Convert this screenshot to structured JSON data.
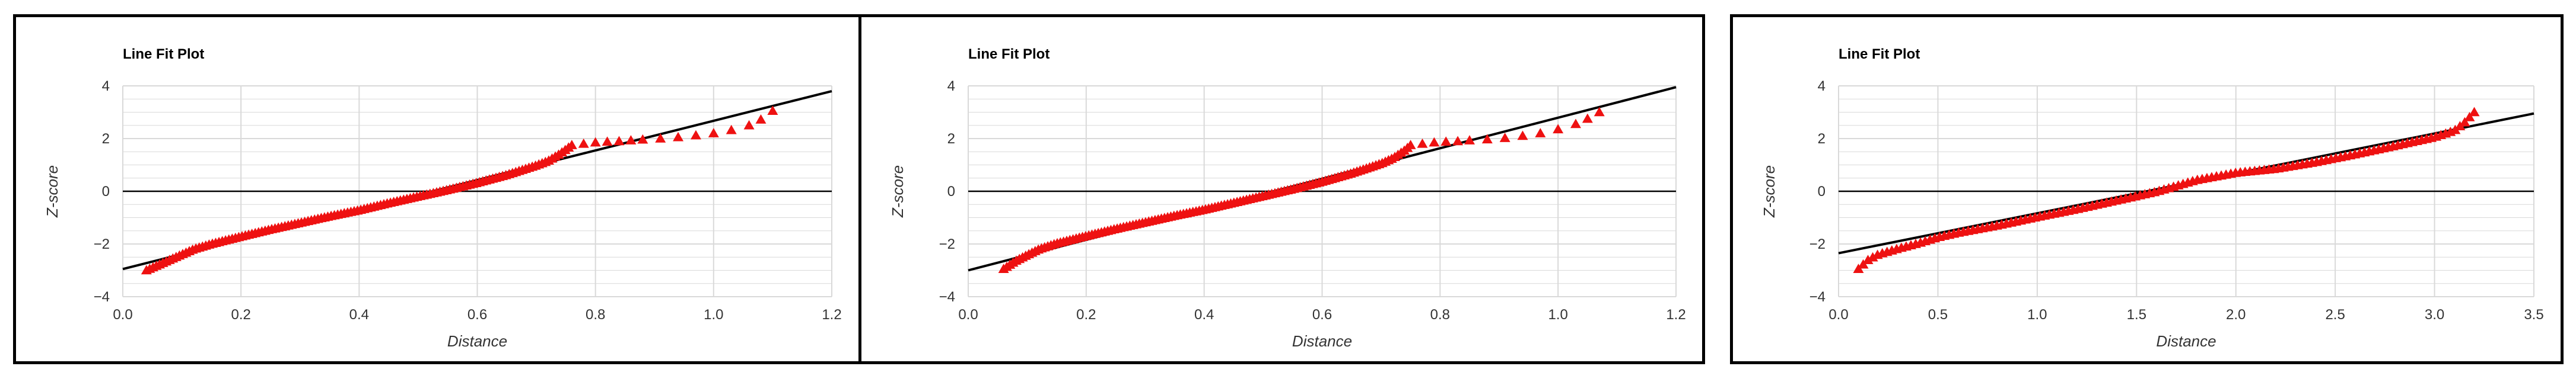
{
  "colors": {
    "points": "#ee1111",
    "fit_line": "#000000",
    "grid": "#d9d9d9",
    "zero_line": "#000000"
  },
  "chart_data": [
    {
      "type": "scatter",
      "title": "Line Fit Plot",
      "xlabel": "Distance",
      "ylabel": "Z-score",
      "xlim": [
        0,
        1.2
      ],
      "ylim": [
        -4,
        4
      ],
      "xticks": [
        "0.0",
        "0.2",
        "0.4",
        "0.6",
        "0.8",
        "1.0",
        "1.2"
      ],
      "yticks": [
        "4",
        "2",
        "0",
        "−2",
        "−4"
      ],
      "grid": true,
      "legend": "none",
      "marker": "triangle",
      "fit_line": {
        "x": [
          0,
          1.2
        ],
        "y": [
          -2.95,
          3.8
        ]
      },
      "anchors": [
        [
          0.04,
          -3.0
        ],
        [
          0.08,
          -2.6
        ],
        [
          0.1,
          -2.4
        ],
        [
          0.12,
          -2.2
        ],
        [
          0.15,
          -2.0
        ],
        [
          0.2,
          -1.72
        ],
        [
          0.25,
          -1.45
        ],
        [
          0.3,
          -1.2
        ],
        [
          0.35,
          -0.95
        ],
        [
          0.4,
          -0.72
        ],
        [
          0.45,
          -0.45
        ],
        [
          0.5,
          -0.2
        ],
        [
          0.55,
          0.05
        ],
        [
          0.6,
          0.32
        ],
        [
          0.65,
          0.62
        ],
        [
          0.7,
          0.98
        ],
        [
          0.72,
          1.15
        ],
        [
          0.74,
          1.42
        ],
        [
          0.76,
          1.75
        ]
      ],
      "tail": [
        [
          0.78,
          1.8
        ],
        [
          0.8,
          1.85
        ],
        [
          0.82,
          1.88
        ],
        [
          0.84,
          1.9
        ],
        [
          0.86,
          1.93
        ],
        [
          0.88,
          1.96
        ],
        [
          0.91,
          2.0
        ],
        [
          0.94,
          2.05
        ],
        [
          0.97,
          2.12
        ],
        [
          1.0,
          2.2
        ],
        [
          1.03,
          2.32
        ],
        [
          1.06,
          2.5
        ],
        [
          1.08,
          2.72
        ],
        [
          1.1,
          3.05
        ]
      ]
    },
    {
      "type": "scatter",
      "title": "Line Fit Plot",
      "xlabel": "Distance",
      "ylabel": "Z-score",
      "xlim": [
        0,
        1.2
      ],
      "ylim": [
        -4,
        4
      ],
      "xticks": [
        "0.0",
        "0.2",
        "0.4",
        "0.6",
        "0.8",
        "1.0",
        "1.2"
      ],
      "yticks": [
        "4",
        "2",
        "0",
        "−2",
        "−4"
      ],
      "grid": true,
      "legend": "none",
      "marker": "triangle",
      "fit_line": {
        "x": [
          0,
          1.2
        ],
        "y": [
          -3.0,
          3.95
        ]
      },
      "anchors": [
        [
          0.06,
          -2.95
        ],
        [
          0.08,
          -2.65
        ],
        [
          0.1,
          -2.42
        ],
        [
          0.12,
          -2.2
        ],
        [
          0.15,
          -1.98
        ],
        [
          0.2,
          -1.7
        ],
        [
          0.25,
          -1.43
        ],
        [
          0.3,
          -1.18
        ],
        [
          0.35,
          -0.93
        ],
        [
          0.4,
          -0.7
        ],
        [
          0.45,
          -0.44
        ],
        [
          0.5,
          -0.18
        ],
        [
          0.55,
          0.08
        ],
        [
          0.6,
          0.36
        ],
        [
          0.65,
          0.68
        ],
        [
          0.7,
          1.05
        ],
        [
          0.72,
          1.25
        ],
        [
          0.74,
          1.55
        ],
        [
          0.75,
          1.75
        ]
      ],
      "tail": [
        [
          0.77,
          1.8
        ],
        [
          0.79,
          1.85
        ],
        [
          0.81,
          1.88
        ],
        [
          0.83,
          1.9
        ],
        [
          0.85,
          1.93
        ],
        [
          0.88,
          1.97
        ],
        [
          0.91,
          2.02
        ],
        [
          0.94,
          2.1
        ],
        [
          0.97,
          2.2
        ],
        [
          1.0,
          2.35
        ],
        [
          1.03,
          2.55
        ],
        [
          1.05,
          2.75
        ],
        [
          1.07,
          3.0
        ]
      ]
    },
    {
      "type": "scatter",
      "title": "Line Fit Plot",
      "xlabel": "Distance",
      "ylabel": "Z-score",
      "xlim": [
        0,
        3.5
      ],
      "ylim": [
        -4,
        4
      ],
      "xticks": [
        "0.0",
        "0.5",
        "1.0",
        "1.5",
        "2.0",
        "2.5",
        "3.0",
        "3.5"
      ],
      "yticks": [
        "4",
        "2",
        "0",
        "−2",
        "−4"
      ],
      "grid": true,
      "legend": "none",
      "marker": "triangle",
      "fit_line": {
        "x": [
          0,
          3.5
        ],
        "y": [
          -2.35,
          2.95
        ]
      },
      "anchors": [
        [
          0.1,
          -2.95
        ],
        [
          0.15,
          -2.6
        ],
        [
          0.2,
          -2.4
        ],
        [
          0.3,
          -2.18
        ],
        [
          0.4,
          -1.98
        ],
        [
          0.5,
          -1.75
        ],
        [
          0.6,
          -1.58
        ],
        [
          0.8,
          -1.3
        ],
        [
          1.0,
          -0.98
        ],
        [
          1.2,
          -0.68
        ],
        [
          1.4,
          -0.35
        ],
        [
          1.6,
          -0.02
        ],
        [
          1.8,
          0.42
        ],
        [
          2.0,
          0.7
        ],
        [
          2.2,
          0.85
        ],
        [
          2.4,
          1.1
        ],
        [
          2.6,
          1.4
        ],
        [
          2.8,
          1.72
        ],
        [
          3.0,
          2.05
        ],
        [
          3.1,
          2.3
        ],
        [
          3.15,
          2.6
        ],
        [
          3.2,
          3.0
        ]
      ],
      "tail": []
    }
  ]
}
